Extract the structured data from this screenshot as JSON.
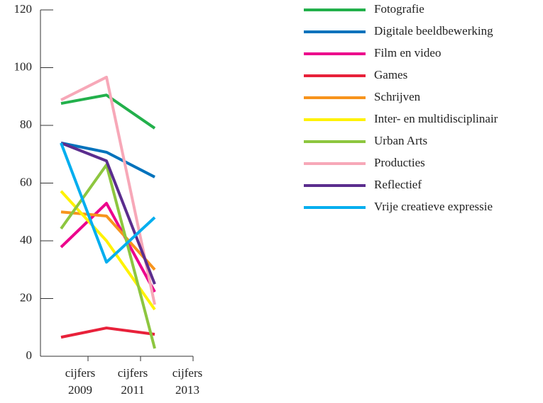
{
  "chart_data": {
    "type": "line",
    "categories": [
      "cijfers 2009",
      "cijfers 2011",
      "cijfers 2013"
    ],
    "ylim": [
      0,
      120
    ],
    "yticks": [
      0,
      20,
      40,
      60,
      80,
      100,
      120
    ],
    "series": [
      {
        "name": "Fotografie",
        "color": "#22b04b",
        "values": [
          87.6,
          90.5,
          79
        ]
      },
      {
        "name": "Digitale beeldbewerking",
        "color": "#0072bc",
        "values": [
          73.9,
          70.7,
          62.1
        ]
      },
      {
        "name": "Film en video",
        "color": "#ec008c",
        "values": [
          37.8,
          53,
          22.3
        ]
      },
      {
        "name": "Games",
        "color": "#e8213a",
        "values": [
          6.6,
          9.8,
          7.6
        ]
      },
      {
        "name": "Schrijven",
        "color": "#f7941d",
        "values": [
          50,
          48.6,
          30
        ]
      },
      {
        "name": "Inter- en multidisciplinair",
        "color": "#fff200",
        "values": [
          57.2,
          40,
          16.2
        ]
      },
      {
        "name": "Urban Arts",
        "color": "#8dc63f",
        "values": [
          44.2,
          66.3,
          2.7
        ]
      },
      {
        "name": "Producties",
        "color": "#f7a8b8",
        "values": [
          88.8,
          96.7,
          17.9
        ]
      },
      {
        "name": "Reflectief",
        "color": "#5b2d8e",
        "values": [
          73.9,
          67.7,
          25
        ]
      },
      {
        "name": "Vrije creatieve expressie",
        "color": "#00aeef",
        "values": [
          73.9,
          32.6,
          48.1
        ]
      }
    ]
  }
}
